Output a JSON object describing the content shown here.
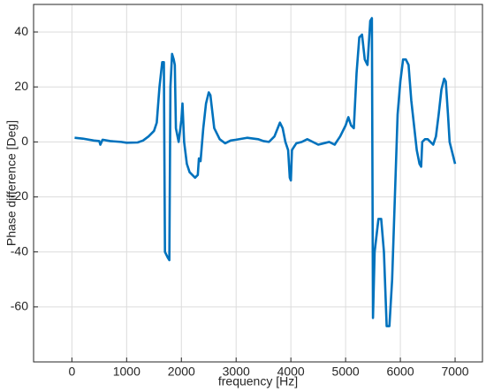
{
  "chart_data": {
    "type": "line",
    "x_label": "frequency [Hz]",
    "y_label": "Phase difference [Deg]",
    "x": [
      50,
      200,
      400,
      500,
      520,
      560,
      700,
      900,
      1000,
      1200,
      1300,
      1400,
      1500,
      1550,
      1600,
      1650,
      1680,
      1700,
      1750,
      1780,
      1800,
      1830,
      1860,
      1880,
      1900,
      1950,
      2000,
      2020,
      2050,
      2100,
      2150,
      2200,
      2250,
      2300,
      2320,
      2350,
      2400,
      2450,
      2500,
      2530,
      2600,
      2700,
      2800,
      2900,
      3000,
      3200,
      3400,
      3500,
      3600,
      3700,
      3800,
      3850,
      3900,
      3950,
      3980,
      4000,
      4020,
      4050,
      4100,
      4200,
      4300,
      4400,
      4500,
      4600,
      4700,
      4800,
      4900,
      5000,
      5050,
      5100,
      5150,
      5200,
      5250,
      5300,
      5350,
      5400,
      5450,
      5480,
      5500,
      5530,
      5600,
      5650,
      5700,
      5750,
      5800,
      5850,
      5900,
      5950,
      6000,
      6050,
      6100,
      6150,
      6200,
      6300,
      6350,
      6380,
      6400,
      6450,
      6500,
      6600,
      6650,
      6700,
      6750,
      6800,
      6830,
      6870,
      6900,
      6950,
      7000
    ],
    "series": [
      {
        "color": "#0072bd",
        "values": [
          1.5,
          1.2,
          0.5,
          0.3,
          -1,
          0.8,
          0.3,
          0,
          -0.3,
          -0.2,
          0.5,
          2,
          4,
          7,
          20,
          29,
          29,
          -40,
          -42,
          -43,
          20,
          32,
          30,
          28,
          5,
          0,
          8,
          14,
          0,
          -8,
          -11,
          -12,
          -13,
          -12,
          -6,
          -7,
          5,
          14,
          18,
          17,
          5,
          1,
          -0.5,
          0.5,
          0.8,
          1.5,
          1,
          0.3,
          0,
          2,
          7,
          5,
          0,
          -3,
          -13,
          -14,
          -3,
          -2,
          -0.5,
          0,
          1,
          0,
          -1,
          -0.5,
          0,
          -1,
          2,
          6,
          9,
          6,
          5,
          25,
          38,
          39,
          30,
          28,
          44,
          45,
          -64,
          -40,
          -28,
          -28,
          -40,
          -67,
          -67,
          -50,
          -20,
          10,
          22,
          30,
          30,
          28,
          15,
          -3,
          -8,
          -9,
          0,
          1,
          1,
          -1,
          2,
          10,
          19,
          23,
          22,
          10,
          0,
          -4,
          -8
        ]
      }
    ],
    "xlim": [
      -700,
      7500
    ],
    "xticks": [
      0,
      1000,
      2000,
      3000,
      4000,
      5000,
      6000,
      7000
    ],
    "ylim": [
      -80,
      50
    ],
    "yticks": [
      -60,
      -40,
      -20,
      0,
      20,
      40
    ],
    "grid": true
  }
}
